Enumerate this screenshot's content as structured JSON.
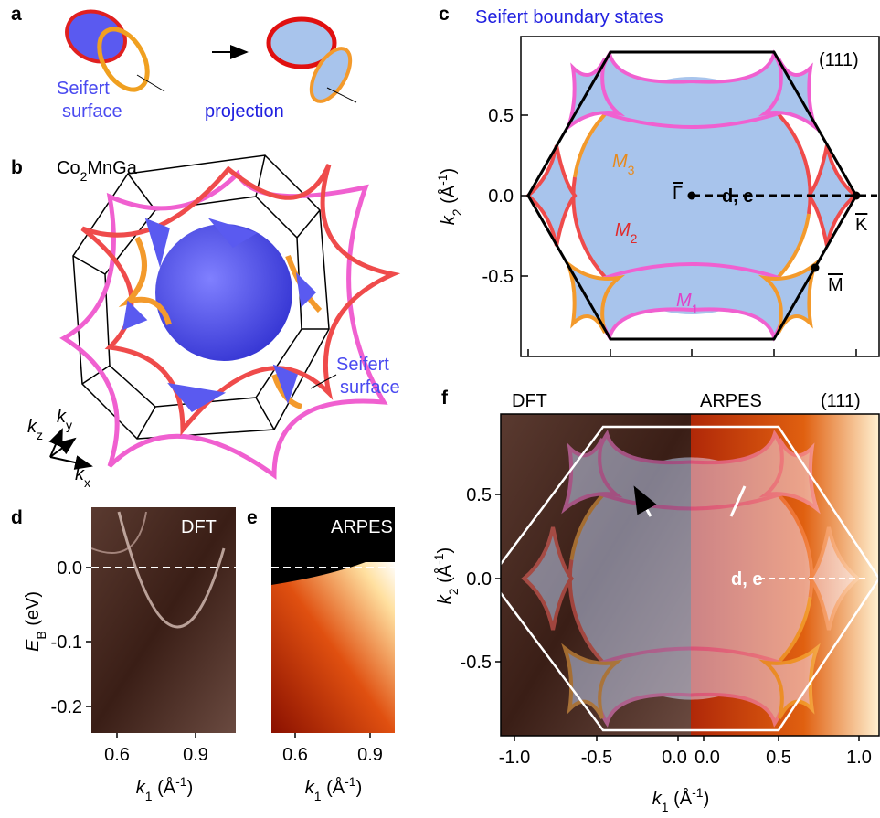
{
  "panel_a": {
    "label": "a",
    "seifert_surface": [
      "Seifert",
      "surface"
    ],
    "projection": "projection"
  },
  "panel_b": {
    "label": "b",
    "material": [
      "Co",
      "2",
      "MnGa"
    ],
    "seifert_surface": [
      "Seifert",
      "surface"
    ],
    "axes": [
      [
        "k",
        "z"
      ],
      [
        "k",
        "y"
      ],
      [
        "k",
        "x"
      ]
    ]
  },
  "panel_c": {
    "label": "c",
    "title": "Seifert boundary states",
    "facet": "(111)",
    "points": [
      "Γ",
      "K",
      "M"
    ],
    "path_label": "d, e",
    "loops": [
      [
        "M",
        "3"
      ],
      [
        "M",
        "2"
      ],
      [
        "M",
        "1"
      ]
    ],
    "yticks": [
      "0.5",
      "0.0",
      "-0.5"
    ],
    "ylabel": [
      "k",
      "2",
      " (Å",
      "-1",
      ")"
    ]
  },
  "panel_d": {
    "label": "d",
    "tag": "DFT",
    "yticks": [
      "0.0",
      "-0.1",
      "-0.2"
    ],
    "xticks": [
      "0.6",
      "0.9"
    ],
    "ylabel": [
      "E",
      "B",
      " (eV)"
    ],
    "xlabel": [
      "k",
      "1",
      " (Å",
      "-1",
      ")"
    ]
  },
  "panel_e": {
    "label": "e",
    "tag": "ARPES",
    "xticks": [
      "0.6",
      "0.9"
    ],
    "xlabel": [
      "k",
      "1",
      " (Å",
      "-1",
      ")"
    ]
  },
  "panel_f": {
    "label": "f",
    "left_tag": "DFT",
    "right_tag": "ARPES",
    "facet": "(111)",
    "path_label": "d, e",
    "yticks": [
      "0.5",
      "0.0",
      "-0.5"
    ],
    "xticks": [
      "-1.0",
      "-0.5",
      "0.0",
      "0.0",
      "0.5",
      "1.0"
    ],
    "xlabel": [
      "k",
      "1",
      " (Å",
      "-1",
      ")"
    ],
    "ylabel": [
      "k",
      "2",
      " (Å",
      "-1",
      ")"
    ]
  }
}
